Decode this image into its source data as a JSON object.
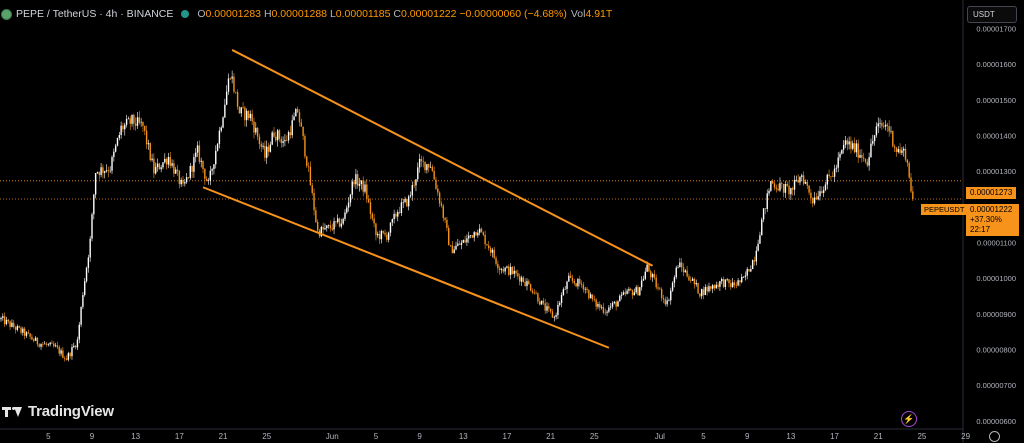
{
  "header": {
    "symbol": "PEPE / TetherUS · 4h · BINANCE",
    "o_label": "O",
    "o_value": "0.00001283",
    "h_label": "H",
    "h_value": "0.00001288",
    "l_label": "L",
    "l_value": "0.00001185",
    "c_label": "C",
    "c_value": "0.00001222",
    "change": "−0.00000060 (−4.68%)",
    "vol_label": "Vol",
    "vol_value": "4.91T"
  },
  "currency_selector": "USDT",
  "branding": "TradingView",
  "price_tags": {
    "upper": "0.00001273",
    "last_price": "0.00001222",
    "last_change": "+37.30%",
    "countdown": "22:17",
    "symbol_label": "PEPEUSDT"
  },
  "colors": {
    "background": "#000000",
    "up": "#ffffff",
    "down": "#f7931a",
    "trendline": "#f7931a",
    "axis_text": "#b2b5be"
  },
  "icons": [
    "pepe-coin-icon",
    "market-status-icon",
    "tradingview-logo-icon",
    "lightning-icon",
    "gear-icon"
  ],
  "chart_data": {
    "type": "candlestick",
    "ylim": [
      5.8e-06,
      1.78e-05
    ],
    "ytick_values": [
      6e-06,
      7e-06,
      8e-06,
      9e-06,
      1e-05,
      1.1e-05,
      1.2e-05,
      1.3e-05,
      1.4e-05,
      1.5e-05,
      1.6e-05,
      1.7e-05
    ],
    "ytick_labels": [
      "0.00000600",
      "0.00000700",
      "0.00000800",
      "0.00000900",
      "0.00001000",
      "0.00001100",
      "0.00001200",
      "0.00001300",
      "0.00001400",
      "0.00001500",
      "0.00001600",
      "0.00001700"
    ],
    "x_labels": [
      "5",
      "9",
      "13",
      "17",
      "21",
      "25",
      "Jun",
      "5",
      "9",
      "13",
      "17",
      "21",
      "25",
      "Jul",
      "5",
      "9",
      "13",
      "17",
      "21",
      "25",
      "29"
    ],
    "x_label_bars": [
      26,
      50,
      74,
      98,
      122,
      146,
      182,
      206,
      230,
      254,
      278,
      302,
      326,
      362,
      386,
      410,
      434,
      458,
      482,
      506,
      530
    ],
    "bar_count": 502,
    "anchors": [
      [
        0,
        8.85e-06
      ],
      [
        12,
        8.48e-06
      ],
      [
        20,
        8.2e-06
      ],
      [
        30,
        8.05e-06
      ],
      [
        36,
        7.75e-06
      ],
      [
        42,
        8.25e-06
      ],
      [
        45,
        9.6e-06
      ],
      [
        49,
        1.105e-05
      ],
      [
        52,
        1.3e-05
      ],
      [
        60,
        1.31e-05
      ],
      [
        66,
        1.42e-05
      ],
      [
        72,
        1.44e-05
      ],
      [
        78,
        1.425e-05
      ],
      [
        84,
        1.3e-05
      ],
      [
        92,
        1.34e-05
      ],
      [
        100,
        1.25e-05
      ],
      [
        108,
        1.355e-05
      ],
      [
        114,
        1.26e-05
      ],
      [
        120,
        1.41e-05
      ],
      [
        126,
        1.58e-05
      ],
      [
        131,
        1.465e-05
      ],
      [
        137,
        1.455e-05
      ],
      [
        145,
        1.34e-05
      ],
      [
        150,
        1.41e-05
      ],
      [
        156,
        1.38e-05
      ],
      [
        163,
        1.47e-05
      ],
      [
        168,
        1.33e-05
      ],
      [
        174,
        1.13e-05
      ],
      [
        180,
        1.14e-05
      ],
      [
        188,
        1.16e-05
      ],
      [
        194,
        1.28e-05
      ],
      [
        200,
        1.25e-05
      ],
      [
        206,
        1.12e-05
      ],
      [
        212,
        1.12e-05
      ],
      [
        218,
        1.19e-05
      ],
      [
        224,
        1.22e-05
      ],
      [
        230,
        1.32e-05
      ],
      [
        236,
        1.32e-05
      ],
      [
        242,
        1.2e-05
      ],
      [
        247,
        1.08e-05
      ],
      [
        254,
        1.1e-05
      ],
      [
        262,
        1.14e-05
      ],
      [
        268,
        1.09e-05
      ],
      [
        274,
        1.03e-05
      ],
      [
        280,
        1.02e-05
      ],
      [
        286,
        1e-05
      ],
      [
        292,
        9.7e-06
      ],
      [
        298,
        9.2e-06
      ],
      [
        304,
        8.9e-06
      ],
      [
        308,
        9.5e-06
      ],
      [
        312,
        9.95e-06
      ],
      [
        320,
        9.8e-06
      ],
      [
        326,
        9.3e-06
      ],
      [
        332,
        9.1e-06
      ],
      [
        338,
        9.3e-06
      ],
      [
        344,
        9.6e-06
      ],
      [
        350,
        9.65e-06
      ],
      [
        355,
        1.03e-05
      ],
      [
        361,
        9.7e-06
      ],
      [
        366,
        9.3e-06
      ],
      [
        372,
        1.04e-05
      ],
      [
        378,
        1.005e-05
      ],
      [
        384,
        9.6e-06
      ],
      [
        390,
        9.75e-06
      ],
      [
        396,
        9.9e-06
      ],
      [
        402,
        9.8e-06
      ],
      [
        408,
        9.95e-06
      ],
      [
        414,
        1.06e-05
      ],
      [
        418,
        1.16e-05
      ],
      [
        423,
        1.27e-05
      ],
      [
        428,
        1.255e-05
      ],
      [
        434,
        1.245e-05
      ],
      [
        440,
        1.29e-05
      ],
      [
        446,
        1.22e-05
      ],
      [
        452,
        1.26e-05
      ],
      [
        458,
        1.3e-05
      ],
      [
        464,
        1.38e-05
      ],
      [
        470,
        1.36e-05
      ],
      [
        476,
        1.33e-05
      ],
      [
        481,
        1.42e-05
      ],
      [
        487,
        1.43e-05
      ],
      [
        492,
        1.36e-05
      ],
      [
        497,
        1.35e-05
      ],
      [
        501,
        1.222e-05
      ]
    ],
    "trendlines": [
      {
        "from": [
          127,
          1.64e-05
        ],
        "to": [
          358,
          1.035e-05
        ]
      },
      {
        "from": [
          111,
          1.255e-05
        ],
        "to": [
          334,
          8.05e-06
        ]
      }
    ],
    "horizontal_lines": [
      1.273e-05,
      1.222e-05
    ]
  }
}
